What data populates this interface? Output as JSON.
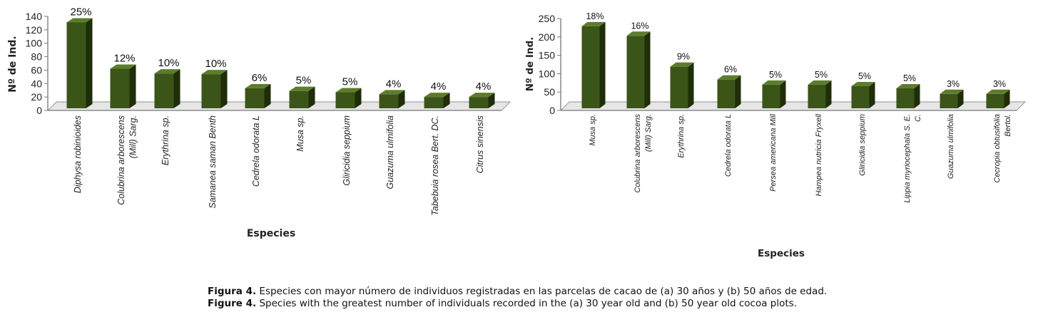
{
  "chart_data": [
    {
      "type": "bar",
      "panel": "a",
      "ylabel": "Nº de Ind.",
      "xlabel": "Especies",
      "ylim": [
        0,
        140
      ],
      "yticks": [
        0,
        20,
        40,
        60,
        80,
        100,
        120,
        140
      ],
      "grid": false,
      "categories": [
        [
          "Diphysa robinioides"
        ],
        [
          "Colubrina arborescens",
          "(Mill) Sarg."
        ],
        [
          "Erythrina sp."
        ],
        [
          "Samanea saman Benth"
        ],
        [
          "Cedrela odorata L"
        ],
        [
          "Musa sp."
        ],
        [
          "Gliricidia seppium"
        ],
        [
          "Guazuma ulmifolia"
        ],
        [
          "Tabebuia rosea Bert. DC."
        ],
        [
          "Citrus sinensis"
        ]
      ],
      "values": [
        131,
        62,
        55,
        54,
        33,
        29,
        27,
        24,
        20,
        20
      ],
      "labels": [
        "25%",
        "12%",
        "10%",
        "10%",
        "6%",
        "5%",
        "5%",
        "4%",
        "4%",
        "4%"
      ]
    },
    {
      "type": "bar",
      "panel": "b",
      "ylabel": "Nº de Ind.",
      "xlabel": "Especies",
      "ylim": [
        0,
        250
      ],
      "yticks": [
        0,
        50,
        100,
        150,
        200,
        250
      ],
      "grid": false,
      "categories": [
        [
          "Musa sp."
        ],
        [
          "Colubrina arborescens",
          "(Mill) Sarg."
        ],
        [
          "Erythrina sp."
        ],
        [
          "Cedrela odorata L"
        ],
        [
          "Persea americana Mill"
        ],
        [
          "Hampea nutricia Fryxell"
        ],
        [
          "Gliricidia seppium"
        ],
        [
          "Lippia myriocephala S. E.",
          "C."
        ],
        [
          "Guazuma ulmifolia"
        ],
        [
          "Cecropia obtusifolia",
          "Bertol."
        ]
      ],
      "values": [
        229,
        203,
        119,
        84,
        70,
        70,
        66,
        60,
        45,
        45
      ],
      "labels": [
        "18%",
        "16%",
        "9%",
        "6%",
        "5%",
        "5%",
        "5%",
        "5%",
        "3%",
        "3%"
      ]
    }
  ],
  "caption": {
    "es_label": "Figura 4.",
    "es_text": "Especies con mayor número de individuos registradas en las parcelas de cacao de (a) 30 años y (b) 50 años de edad.",
    "en_label": "Figure 4.",
    "en_text": "Species with the greatest number of individuals recorded in the (a) 30 year old and (b) 50 year old cocoa plots."
  },
  "colors": {
    "bar_front": "#3b5418",
    "bar_side": "#1d2e08",
    "bar_top": "#5c7d2a",
    "floor": "#e6e6e6",
    "axis": "#777777"
  }
}
